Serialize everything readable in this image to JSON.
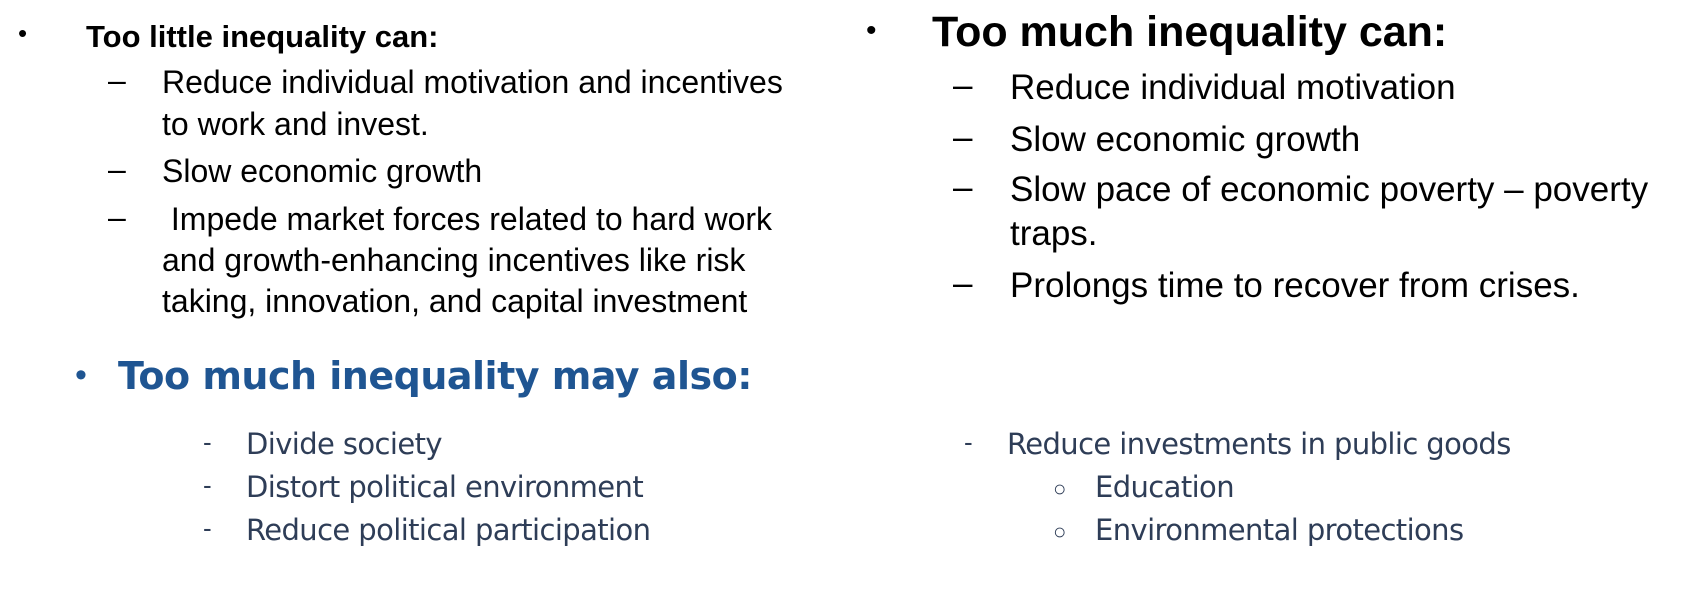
{
  "left": {
    "heading": "Too little inequality can:",
    "items": [
      {
        "lines": [
          "Reduce individual motivation and incentives",
          "to work and invest."
        ]
      },
      {
        "lines": [
          "Slow economic growth"
        ]
      },
      {
        "lines": [
          " Impede market forces related to hard work",
          "and growth-enhancing incentives like risk",
          "taking, innovation, and capital investment"
        ]
      }
    ]
  },
  "right": {
    "heading": "Too much inequality can:",
    "items": [
      {
        "lines": [
          "Reduce individual motivation"
        ]
      },
      {
        "lines": [
          "Slow economic growth"
        ]
      },
      {
        "lines": [
          "Slow pace of economic poverty – poverty",
          "traps."
        ]
      },
      {
        "lines": [
          "Prolongs time to recover from crises."
        ]
      }
    ]
  },
  "bottom": {
    "heading": "Too much inequality may also:",
    "left_items": [
      "Divide society",
      "Distort political environment",
      "Reduce political participation"
    ],
    "right_item": "Reduce investments in public goods",
    "right_subitems": [
      "Education",
      "Environmental protections"
    ]
  },
  "glyphs": {
    "bullet": "•",
    "dash": "–",
    "hyphen": "-",
    "circle": "○"
  },
  "colors": {
    "heading_blue": "#1f5592",
    "body_slate": "#2e3d57"
  }
}
